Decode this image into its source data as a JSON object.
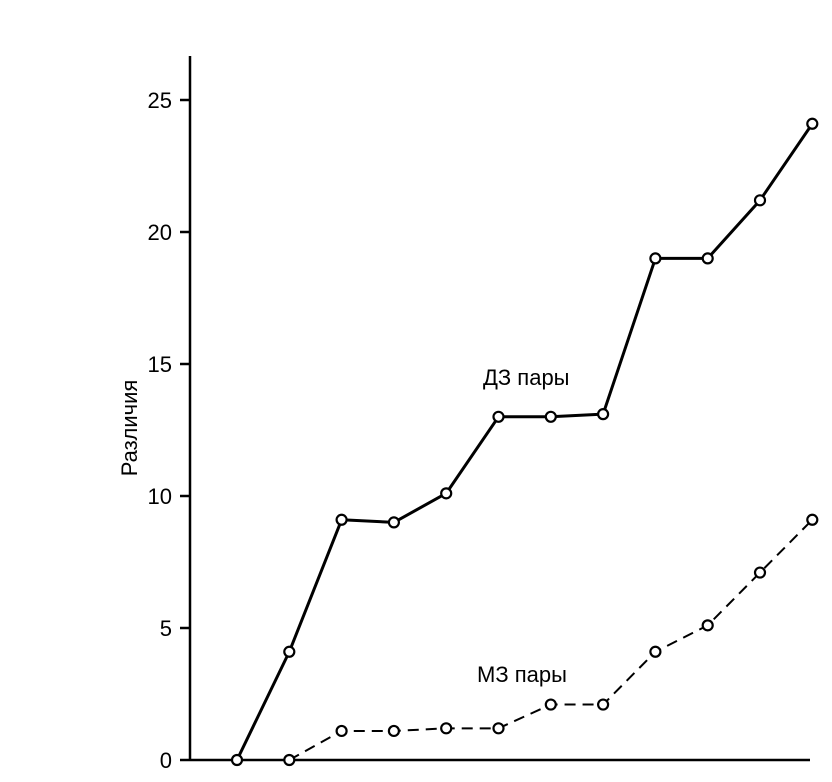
{
  "chart_data": {
    "type": "line",
    "ylabel": "Различия",
    "xlabel": "",
    "ylim": [
      0,
      26
    ],
    "yticks": [
      0,
      5,
      10,
      15,
      20,
      25
    ],
    "grid": false,
    "series": [
      {
        "name": "ДЗ пары",
        "style": "solid",
        "color": "#000000",
        "values": [
          0,
          4.1,
          9.1,
          9.0,
          10.1,
          13.0,
          13.0,
          13.1,
          19.0,
          19.0,
          21.2,
          24.1
        ]
      },
      {
        "name": "МЗ пары",
        "style": "dashed",
        "color": "#000000",
        "values": [
          null,
          0,
          1.1,
          1.1,
          1.2,
          1.2,
          2.1,
          2.1,
          4.1,
          5.1,
          7.1,
          9.1
        ]
      }
    ]
  }
}
